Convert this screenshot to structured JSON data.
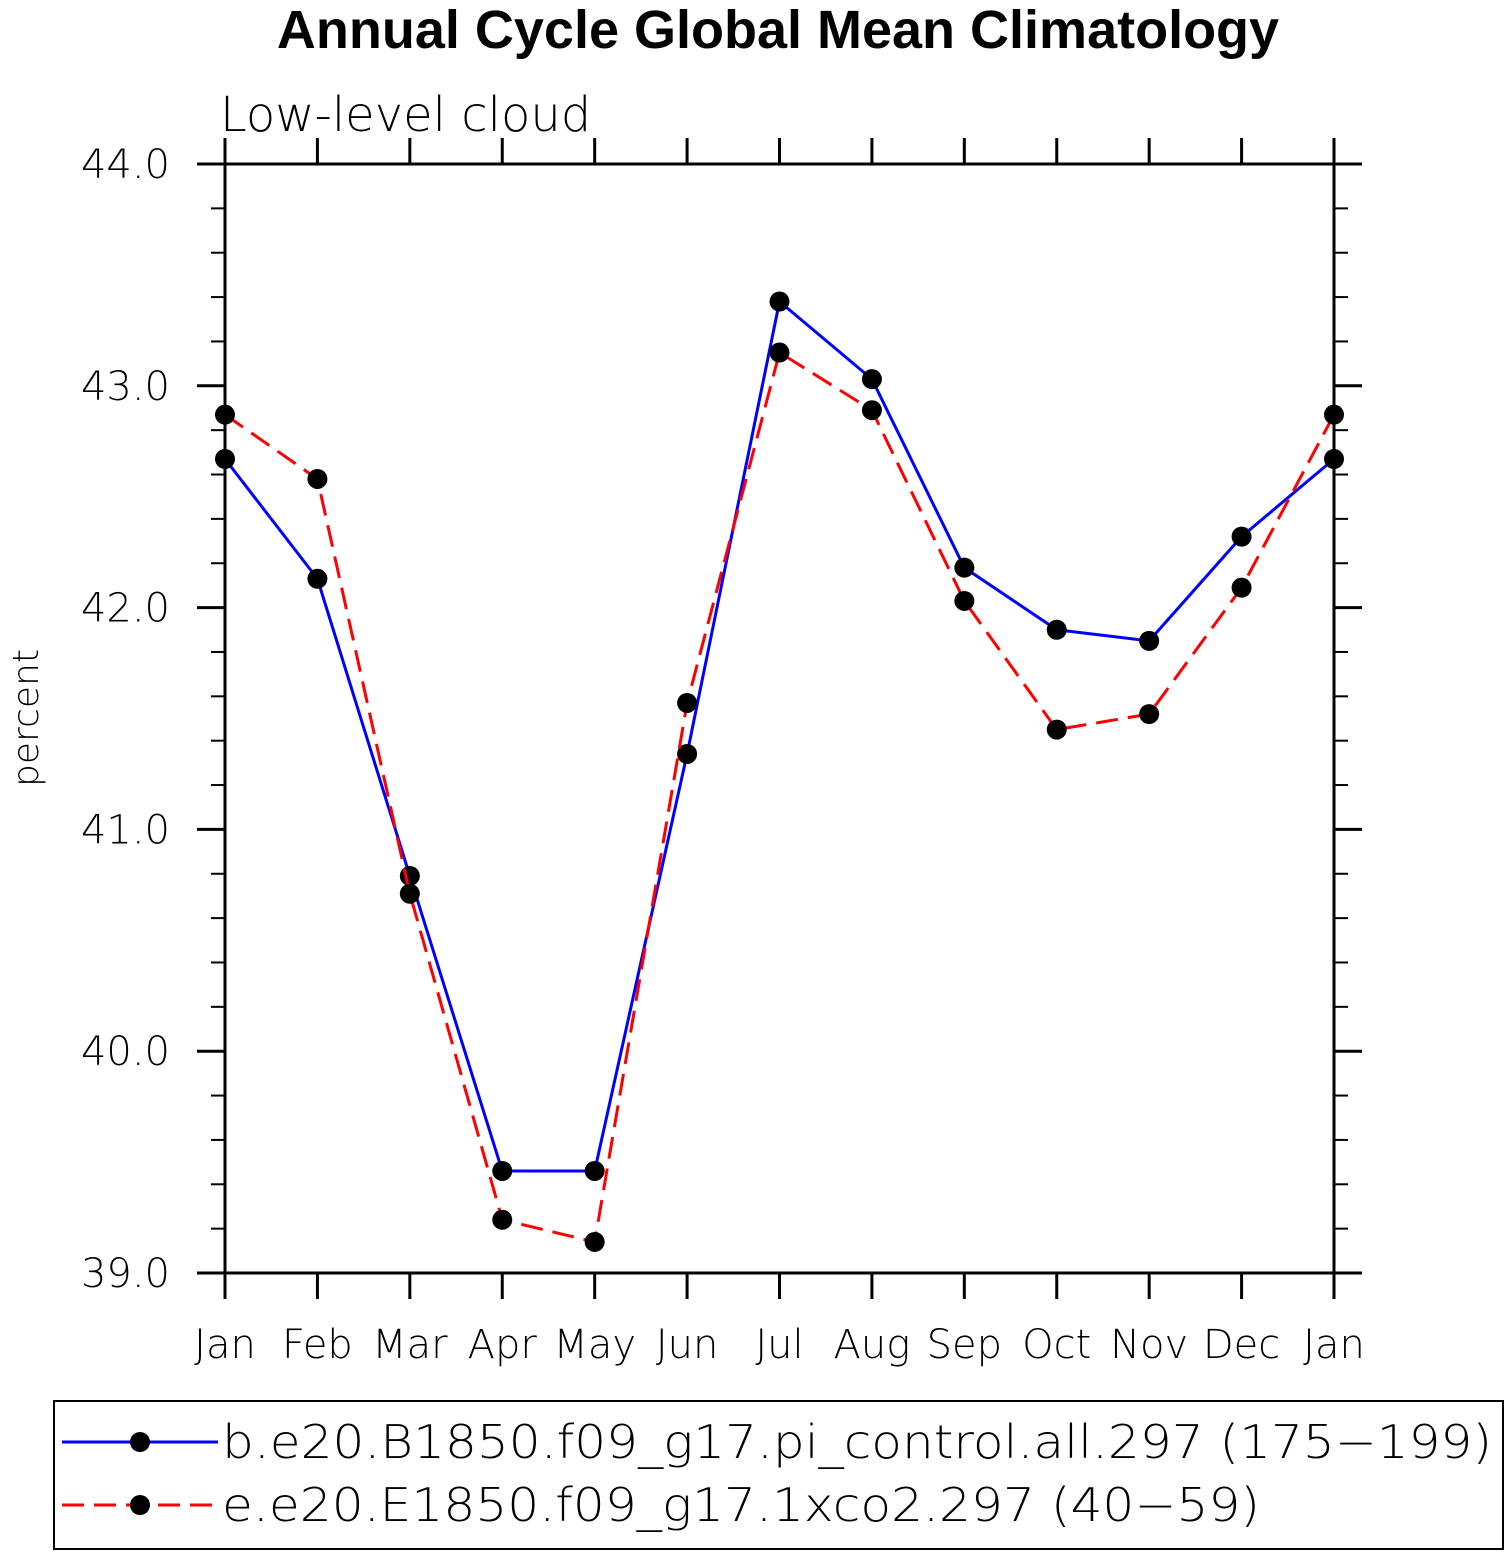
{
  "chart_data": {
    "type": "line",
    "title": "Annual Cycle Global Mean Climatology",
    "subtitle": "Low-level cloud",
    "xlabel": "",
    "ylabel": "percent",
    "ylim": [
      39.0,
      44.0
    ],
    "yticks": [
      "39.0",
      "40.0",
      "41.0",
      "42.0",
      "43.0",
      "44.0"
    ],
    "categories": [
      "Jan",
      "Feb",
      "Mar",
      "Apr",
      "May",
      "Jun",
      "Jul",
      "Aug",
      "Sep",
      "Oct",
      "Nov",
      "Dec",
      "Jan"
    ],
    "grid": false,
    "legend_position": "bottom",
    "series": [
      {
        "name": "b.e20.B1850.f09_g17.pi_control.all.297 (175−199)",
        "color": "#0000ff",
        "dash": "solid",
        "values": [
          42.67,
          42.13,
          40.79,
          39.46,
          39.46,
          41.34,
          43.38,
          43.03,
          42.18,
          41.9,
          41.85,
          42.32,
          42.67
        ]
      },
      {
        "name": "e.e20.E1850.f09_g17.1xco2.297 (40−59)",
        "color": "#ff0000",
        "dash": "dashed",
        "values": [
          42.87,
          42.58,
          40.71,
          39.24,
          39.14,
          41.57,
          43.15,
          42.89,
          42.03,
          41.45,
          41.52,
          42.09,
          42.87
        ]
      }
    ]
  }
}
